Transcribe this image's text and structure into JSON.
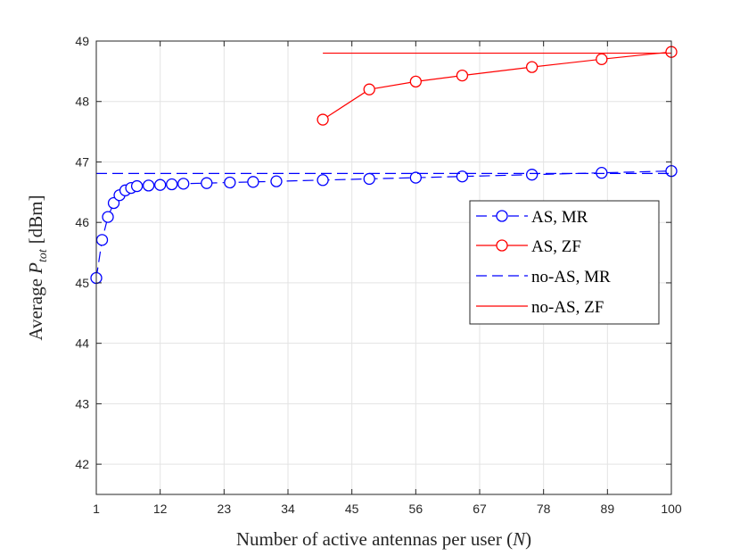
{
  "chart_data": {
    "type": "line",
    "title": "",
    "xlabel": "Number of active antennas per user",
    "xlabel_symbol": "N",
    "ylabel": "Average",
    "ylabel_symbol": "P",
    "ylabel_subscript": "tot",
    "ylabel_unit": "[dBm]",
    "xlim": [
      1,
      100
    ],
    "ylim": [
      41.5,
      49
    ],
    "xticks": [
      1,
      12,
      23,
      34,
      45,
      56,
      67,
      78,
      89,
      100
    ],
    "yticks": [
      42,
      43,
      44,
      45,
      46,
      47,
      48,
      49
    ],
    "grid": true,
    "legend_position": "right",
    "series": [
      {
        "name": "AS, MR",
        "color": "#0000ff",
        "line_style": "dashed",
        "marker": "circle",
        "x": [
          1,
          2,
          3,
          4,
          5,
          6,
          7,
          8,
          10,
          12,
          14,
          16,
          20,
          24,
          28,
          32,
          40,
          48,
          56,
          64,
          76,
          88,
          100
        ],
        "y": [
          45.08,
          45.71,
          46.09,
          46.32,
          46.45,
          46.53,
          46.57,
          46.6,
          46.61,
          46.62,
          46.63,
          46.64,
          46.65,
          46.66,
          46.67,
          46.68,
          46.7,
          46.72,
          46.74,
          46.76,
          46.79,
          46.82,
          46.85
        ]
      },
      {
        "name": "AS, ZF",
        "color": "#ff0000",
        "line_style": "solid",
        "marker": "circle",
        "x": [
          40,
          48,
          56,
          64,
          76,
          88,
          100
        ],
        "y": [
          47.7,
          48.2,
          48.33,
          48.43,
          48.57,
          48.7,
          48.82
        ]
      },
      {
        "name": "no-AS, MR",
        "color": "#0000ff",
        "line_style": "dashed",
        "marker": "none",
        "x": [
          1,
          100
        ],
        "y": [
          46.81,
          46.81
        ]
      },
      {
        "name": "no-AS, ZF",
        "color": "#ff0000",
        "line_style": "solid",
        "marker": "none",
        "x": [
          40,
          100
        ],
        "y": [
          48.8,
          48.8
        ]
      }
    ]
  }
}
